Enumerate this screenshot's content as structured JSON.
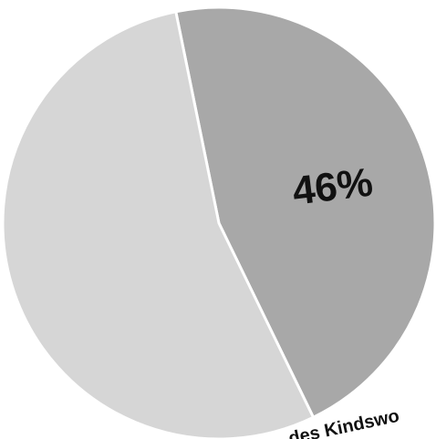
{
  "chart_data": {
    "type": "pie",
    "slices": [
      {
        "value": 46,
        "label": "46%",
        "color": "#a8a8a8"
      },
      {
        "value": 54,
        "label": "",
        "color": "#d6d6d6"
      }
    ],
    "annotations": [
      {
        "text": "des Kindswo"
      }
    ],
    "title": ""
  }
}
